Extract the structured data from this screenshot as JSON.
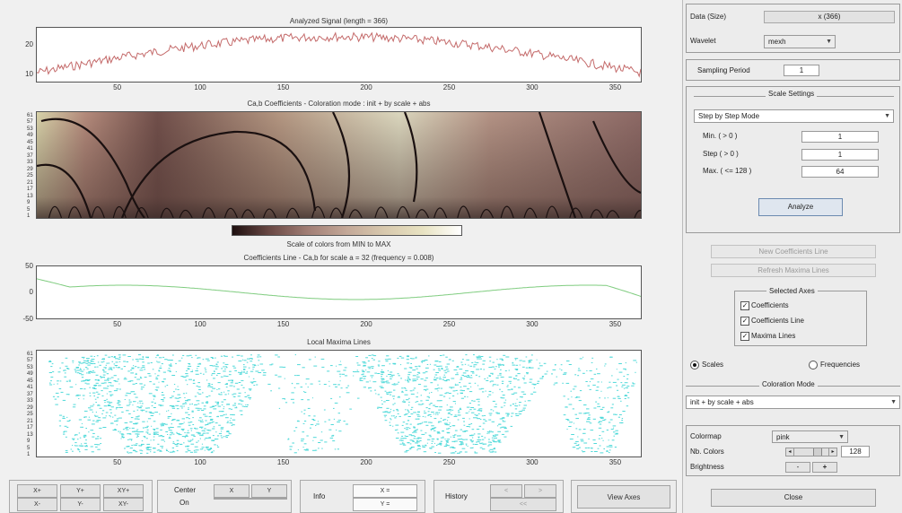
{
  "plots": {
    "signal": {
      "title": "Analyzed Signal (length = 366)",
      "yticks": [
        "20",
        "10"
      ],
      "xticks": [
        "50",
        "100",
        "150",
        "200",
        "250",
        "300",
        "350"
      ]
    },
    "coefs": {
      "title": "Ca,b Coefficients - Coloration mode : init + by scale + abs",
      "yticks": [
        "61",
        "57",
        "53",
        "49",
        "45",
        "41",
        "37",
        "33",
        "29",
        "25",
        "21",
        "17",
        "13",
        "9",
        "5",
        "1"
      ]
    },
    "colorbar": {
      "caption": "Scale of colors from MIN to MAX"
    },
    "coefline": {
      "title": "Coefficients Line - Ca,b for scale a = 32 (frequency = 0.008)",
      "yticks": [
        "50",
        "0",
        "-50"
      ],
      "xticks": [
        "50",
        "100",
        "150",
        "200",
        "250",
        "300",
        "350"
      ]
    },
    "maxima": {
      "title": "Local Maxima Lines",
      "yticks": [
        "61",
        "57",
        "53",
        "49",
        "45",
        "41",
        "37",
        "33",
        "29",
        "25",
        "21",
        "17",
        "13",
        "9",
        "5",
        "1"
      ],
      "xticks": [
        "50",
        "100",
        "150",
        "200",
        "250",
        "300",
        "350"
      ]
    }
  },
  "panel": {
    "data_size_label": "Data (Size)",
    "data_size_value": "x (366)",
    "wavelet_label": "Wavelet",
    "wavelet_value": "mexh",
    "sampling_label": "Sampling Period",
    "sampling_value": "1",
    "scale_settings_title": "Scale Settings",
    "scale_mode": "Step by Step Mode",
    "min_label": "Min. ( > 0 )",
    "min_value": "1",
    "step_label": "Step ( > 0 )",
    "step_value": "1",
    "max_label": "Max. ( <= 128 )",
    "max_value": "64",
    "analyze": "Analyze",
    "new_coef_line": "New Coefficients Line",
    "refresh_maxima": "Refresh Maxima Lines",
    "selected_axes_title": "Selected Axes",
    "axes": [
      "Coefficients",
      "Coefficients Line",
      "Maxima Lines"
    ],
    "radio_scales": "Scales",
    "radio_frequencies": "Frequencies",
    "coloration_title": "Coloration Mode",
    "coloration_value": "init + by scale + abs",
    "colormap_label": "Colormap",
    "colormap_value": "pink",
    "nb_colors_label": "Nb. Colors",
    "nb_colors_value": "128",
    "brightness_label": "Brightness",
    "bright_minus": "-",
    "bright_plus": "+",
    "close": "Close"
  },
  "bottom": {
    "xplus": "X+",
    "yplus": "Y+",
    "xyplus": "XY+",
    "xminus": "X-",
    "yminus": "Y-",
    "xyminus": "XY-",
    "center": "Center",
    "on": "On",
    "x": "X",
    "y": "Y",
    "info": "Info",
    "x_eq": "X =",
    "y_eq": "Y =",
    "history": "History",
    "hist_back": "<",
    "hist_fwd": ">",
    "hist_start": "<<",
    "view_axes": "View Axes"
  },
  "colors": {
    "signal_line": "#c46a6a",
    "coef_line": "#7fcc7f",
    "maxima": "#4fd9d9"
  }
}
